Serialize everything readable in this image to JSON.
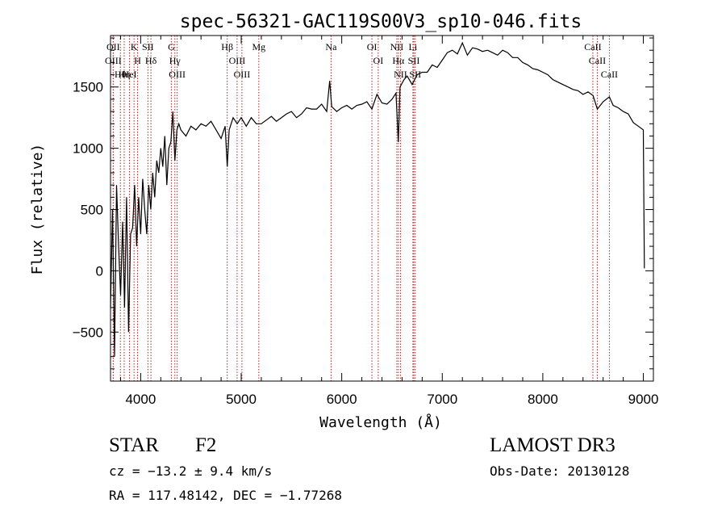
{
  "chart_data": {
    "type": "line",
    "title": "spec-56321-GAC119S00V3_sp10-046.fits",
    "xlabel": "Wavelength (Å)",
    "ylabel": "Flux (relative)",
    "xlim": [
      3700,
      9100
    ],
    "ylim": [
      -900,
      1920
    ],
    "xticks": [
      4000,
      5000,
      6000,
      7000,
      8000,
      9000
    ],
    "yticks": [
      -500,
      0,
      500,
      1000,
      1500
    ],
    "series": [
      {
        "name": "spectrum",
        "x": [
          3700,
          3720,
          3740,
          3760,
          3780,
          3800,
          3820,
          3840,
          3860,
          3880,
          3900,
          3920,
          3940,
          3960,
          3980,
          4000,
          4020,
          4040,
          4060,
          4080,
          4100,
          4120,
          4140,
          4160,
          4180,
          4200,
          4220,
          4240,
          4260,
          4280,
          4300,
          4320,
          4340,
          4360,
          4380,
          4400,
          4450,
          4500,
          4550,
          4600,
          4650,
          4700,
          4750,
          4800,
          4840,
          4861,
          4880,
          4920,
          4960,
          5000,
          5050,
          5100,
          5150,
          5200,
          5250,
          5300,
          5350,
          5400,
          5450,
          5500,
          5550,
          5600,
          5650,
          5700,
          5750,
          5800,
          5850,
          5880,
          5900,
          5950,
          6000,
          6050,
          6100,
          6150,
          6200,
          6250,
          6300,
          6350,
          6400,
          6450,
          6500,
          6540,
          6563,
          6580,
          6620,
          6650,
          6700,
          6750,
          6800,
          6850,
          6900,
          6950,
          7000,
          7050,
          7100,
          7150,
          7200,
          7250,
          7300,
          7350,
          7400,
          7450,
          7500,
          7550,
          7600,
          7650,
          7700,
          7750,
          7800,
          7850,
          7900,
          7950,
          8000,
          8050,
          8100,
          8150,
          8200,
          8250,
          8300,
          8350,
          8400,
          8450,
          8500,
          8542,
          8600,
          8662,
          8700,
          8750,
          8800,
          8850,
          8900,
          8950,
          9000,
          9010
        ],
        "values": [
          -300,
          500,
          -700,
          700,
          200,
          -200,
          400,
          -300,
          600,
          -500,
          300,
          350,
          700,
          200,
          600,
          300,
          750,
          500,
          300,
          700,
          500,
          800,
          600,
          900,
          800,
          1000,
          850,
          1100,
          700,
          1000,
          1050,
          1300,
          900,
          1150,
          1200,
          1150,
          1100,
          1180,
          1150,
          1200,
          1180,
          1220,
          1150,
          1080,
          1180,
          850,
          1150,
          1250,
          1200,
          1250,
          1180,
          1250,
          1200,
          1200,
          1230,
          1260,
          1220,
          1250,
          1280,
          1300,
          1250,
          1280,
          1330,
          1320,
          1320,
          1360,
          1300,
          1550,
          1340,
          1300,
          1330,
          1350,
          1320,
          1350,
          1360,
          1380,
          1320,
          1440,
          1370,
          1360,
          1400,
          1450,
          1050,
          1500,
          1560,
          1590,
          1520,
          1600,
          1620,
          1620,
          1680,
          1660,
          1720,
          1780,
          1800,
          1770,
          1860,
          1760,
          1820,
          1810,
          1790,
          1800,
          1780,
          1760,
          1800,
          1780,
          1740,
          1740,
          1700,
          1680,
          1650,
          1640,
          1620,
          1600,
          1560,
          1540,
          1520,
          1500,
          1480,
          1470,
          1440,
          1460,
          1430,
          1320,
          1380,
          1420,
          1350,
          1330,
          1300,
          1280,
          1210,
          1180,
          1150,
          20
        ]
      }
    ],
    "line_markers": [
      {
        "name": "Hθ",
        "wavelength": 3798
      },
      {
        "name": "OII",
        "wavelength": 3727
      },
      {
        "name": "OIII",
        "wavelength": 3727
      },
      {
        "name": "Hη",
        "wavelength": 3836
      },
      {
        "name": "K",
        "wavelength": 3934
      },
      {
        "name": "HeI",
        "wavelength": 3889
      },
      {
        "name": "H",
        "wavelength": 3969
      },
      {
        "name": "SII",
        "wavelength": 4072
      },
      {
        "name": "Hδ",
        "wavelength": 4102
      },
      {
        "name": "OIII",
        "wavelength": 4363
      },
      {
        "name": "Hγ",
        "wavelength": 4340
      },
      {
        "name": "G",
        "wavelength": 4305
      },
      {
        "name": "Hβ",
        "wavelength": 4861
      },
      {
        "name": "OIII",
        "wavelength": 5007
      },
      {
        "name": "OIII",
        "wavelength": 4959
      },
      {
        "name": "Mg",
        "wavelength": 5175
      },
      {
        "name": "Na",
        "wavelength": 5894
      },
      {
        "name": "OI",
        "wavelength": 6300
      },
      {
        "name": "OI",
        "wavelength": 6363
      },
      {
        "name": "Hα",
        "wavelength": 6563
      },
      {
        "name": "NII",
        "wavelength": 6548
      },
      {
        "name": "NII",
        "wavelength": 6584
      },
      {
        "name": "SII",
        "wavelength": 6717
      },
      {
        "name": "Li",
        "wavelength": 6708
      },
      {
        "name": "SII",
        "wavelength": 6731
      },
      {
        "name": "CaII",
        "wavelength": 8542
      },
      {
        "name": "CaII",
        "wavelength": 8498
      },
      {
        "name": "CaII",
        "wavelength": 8662
      }
    ],
    "colors": {
      "line": "#000000",
      "marker": "#b22222"
    }
  },
  "info": {
    "class_label": "STAR",
    "subclass": "F2",
    "survey": "LAMOST DR3",
    "redshift_line": "cz = −13.2 ± 9.4 km/s",
    "obs_date": "Obs-Date: 20130128",
    "coords_line": "RA = 117.48142, DEC =  −1.77268"
  }
}
